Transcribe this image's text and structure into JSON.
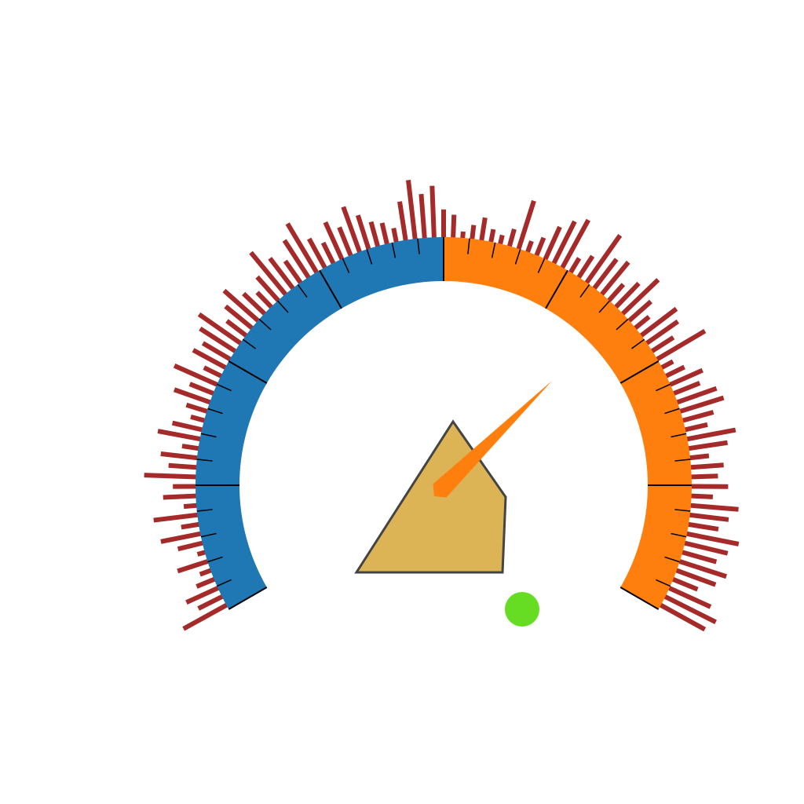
{
  "gauge": {
    "value_fraction": 0.69,
    "arc_split_fraction": 0.5,
    "major_tick_count": 9,
    "minor_ticks_per_major": 4
  },
  "radial_bars": {
    "values": [
      0.78,
      0.42,
      0.55,
      0.3,
      0.18,
      0.5,
      0.12,
      0.4,
      0.64,
      0.28,
      0.7,
      0.2,
      0.52,
      0.36,
      0.82,
      0.44,
      0.58,
      0.26,
      0.68,
      0.48,
      0.22,
      0.34,
      0.6,
      0.4,
      0.74,
      0.3,
      0.58,
      0.5,
      0.66,
      0.8,
      0.38,
      0.54,
      0.72,
      0.46,
      0.32,
      0.5,
      0.86,
      0.6,
      0.42,
      0.7,
      0.9,
      0.52,
      0.36,
      0.64,
      0.48,
      0.76,
      0.56,
      0.4,
      0.34,
      0.22,
      0.62,
      0.94,
      0.7,
      0.82,
      0.44,
      0.36,
      0.1,
      0.22,
      0.36,
      0.2,
      0.14,
      0.28,
      0.8,
      0.18,
      0.3,
      0.56,
      0.74,
      0.86,
      0.26,
      0.4,
      0.92,
      0.58,
      0.66,
      0.34,
      0.52,
      0.78,
      0.46,
      0.28,
      0.7,
      0.6,
      0.4,
      0.88,
      0.2,
      0.32,
      0.56,
      0.44,
      0.66,
      0.72,
      0.5,
      0.36,
      0.78,
      0.62,
      0.3,
      0.52,
      0.42,
      0.58,
      0.34,
      0.76,
      0.62,
      0.48,
      0.84,
      0.7,
      0.56,
      0.78,
      0.66,
      0.42,
      0.72,
      0.9,
      0.8
    ]
  },
  "colors": {
    "arc_low": "#1f77b4",
    "arc_high": "#ff7f0e",
    "radial_bar": "#a52a2a",
    "needle": "#ff7f0e",
    "shape_fill": "#dcb456",
    "shape_stroke": "#444444",
    "dot": "#66dd22",
    "tick": "#000000"
  }
}
